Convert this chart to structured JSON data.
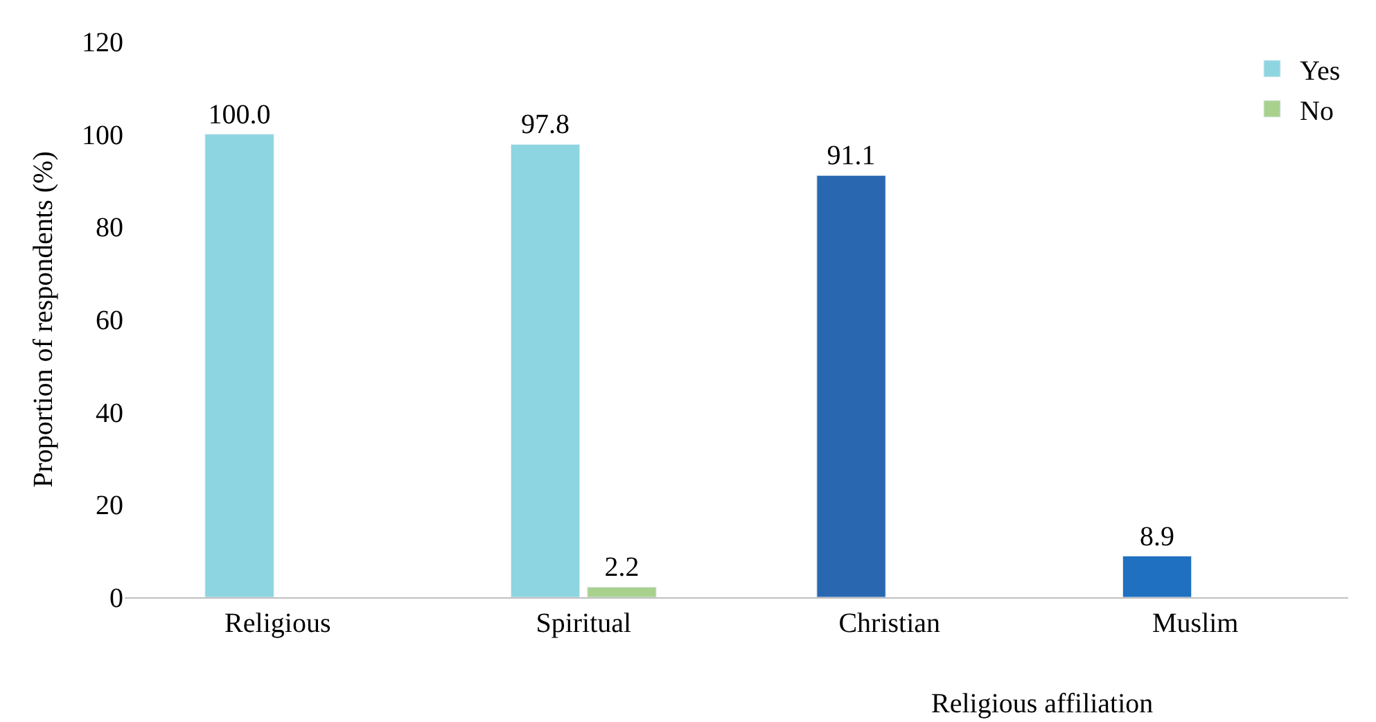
{
  "chart_data": {
    "type": "bar",
    "ylabel": "Proportion of respondents (%)",
    "categories": [
      "Religious",
      "Spiritual",
      "Christian",
      "Muslim"
    ],
    "series": [
      {
        "name": "Yes",
        "color": "#8dd5e0",
        "colors": [
          "#8dd5e0",
          "#8dd5e0",
          "#2a67b1",
          "#1f70c1"
        ],
        "values": [
          100.0,
          97.8,
          91.1,
          8.9
        ],
        "value_labels": [
          "100.0",
          "97.8",
          "91.1",
          "8.9"
        ]
      },
      {
        "name": "No",
        "color": "#a9d18e",
        "values": [
          null,
          2.2,
          null,
          null
        ],
        "value_labels": [
          null,
          "2.2",
          null,
          null
        ]
      }
    ],
    "ylim": [
      0,
      120
    ],
    "yticks": [
      0,
      20,
      40,
      60,
      80,
      100,
      120
    ],
    "grid": false,
    "legend": "top right",
    "annotations": [
      "Religious affiliation"
    ]
  }
}
